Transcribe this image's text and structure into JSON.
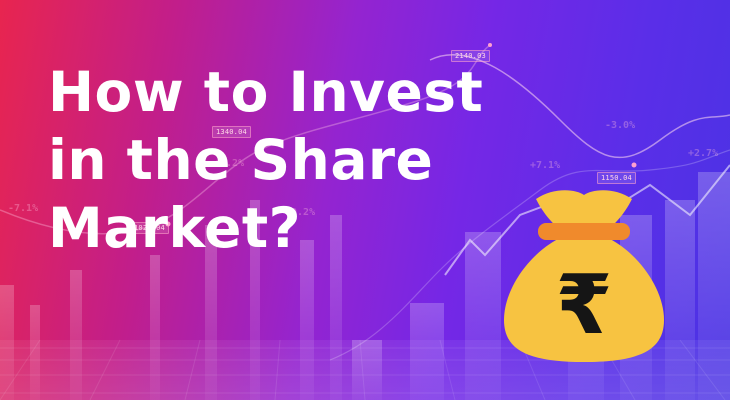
{
  "headline": {
    "lines": [
      "How to Invest",
      "in the Share",
      "Market?"
    ]
  },
  "price_tags": [
    "2140.03",
    "1340.04",
    "1020.04",
    "1150.04"
  ],
  "percent_labels": [
    "-7.1%",
    "+5.2%",
    "-0.2%",
    "+7.1%",
    "-3.0%",
    "+2.7%"
  ],
  "icon": {
    "name": "money-bag-rupee-icon",
    "symbol": "₹"
  },
  "colors": {
    "gradient_left": "#e8254f",
    "gradient_mid": "#9424d0",
    "gradient_right": "#4a33e4",
    "bag_fill": "#f7c341",
    "bag_band": "#f08a2c",
    "symbol": "#151515",
    "headline": "#ffffff"
  }
}
